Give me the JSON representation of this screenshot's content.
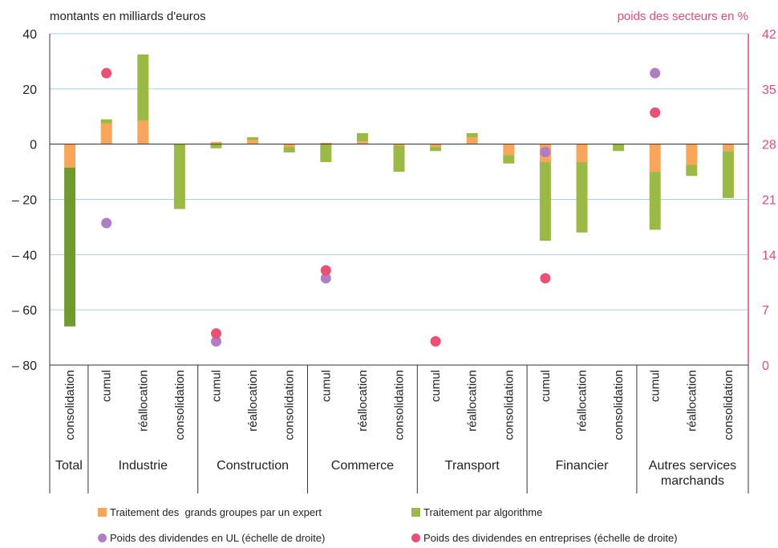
{
  "chart_data": {
    "type": "bar",
    "left_axis_title": "montants en milliards d'euros",
    "right_axis_title": "poids des secteurs en %",
    "y_left": {
      "min": -80,
      "max": 40,
      "ticks": [
        40,
        20,
        0,
        -20,
        -40,
        -60,
        -80
      ],
      "tick_labels": [
        "40",
        "20",
        "0",
        "– 20",
        "– 40",
        "– 60",
        "– 80"
      ]
    },
    "y_right": {
      "min": 0,
      "max": 42,
      "ticks": [
        42,
        35,
        28,
        21,
        14,
        7,
        0
      ],
      "tick_labels": [
        "42",
        "35",
        "28",
        "21",
        "14",
        "7",
        "0"
      ]
    },
    "grid": true,
    "legend_position": "bottom",
    "colors": {
      "expert": "#f9a65a",
      "algo": "#9bba44",
      "algo_total": "#6e9a2e",
      "ul": "#b27cc4",
      "entreprises": "#ec4f73",
      "right_axis": "#e8497a",
      "grid": "#a8d2e0"
    },
    "groups": [
      {
        "name": "Total",
        "categories": [
          "consolidation"
        ]
      },
      {
        "name": "Industrie",
        "categories": [
          "cumul",
          "réallocation",
          "consolidation"
        ]
      },
      {
        "name": "Construction",
        "categories": [
          "cumul",
          "réallocation",
          "consolidation"
        ]
      },
      {
        "name": "Commerce",
        "categories": [
          "cumul",
          "réallocation",
          "consolidation"
        ]
      },
      {
        "name": "Transport",
        "categories": [
          "cumul",
          "réallocation",
          "consolidation"
        ]
      },
      {
        "name": "Financier",
        "categories": [
          "cumul",
          "réallocation",
          "consolidation"
        ]
      },
      {
        "name": "Autres services marchands",
        "name_lines": [
          "Autres services",
          "marchands"
        ],
        "categories": [
          "cumul",
          "réallocation",
          "consolidation"
        ]
      }
    ],
    "series": [
      {
        "name": "Traitement des  grands groupes par un expert",
        "key": "expert",
        "values": [
          -8.5,
          7.5,
          8.5,
          0,
          0.8,
          1.5,
          -1,
          0.5,
          1,
          -0.5,
          -1,
          2.5,
          -4,
          -6.5,
          -6.5,
          0,
          -10,
          -7.5,
          -2.5
        ]
      },
      {
        "name": "Traitement par algorithme",
        "key": "algo",
        "values": [
          -57.5,
          1.5,
          24,
          -23.5,
          -1.5,
          1,
          -2,
          -6.5,
          3,
          -9.5,
          -1.5,
          1.5,
          -3,
          -28.5,
          -25.5,
          -2.5,
          -21,
          -4,
          -17
        ]
      }
    ],
    "dot_series": [
      {
        "name": "Poids des dividendes en UL (échelle de droite)",
        "key": "ul",
        "axis": "right",
        "points": [
          {
            "index": 1,
            "value": 18
          },
          {
            "index": 4,
            "value": 3
          },
          {
            "index": 7,
            "value": 11
          },
          {
            "index": 13,
            "value": 27
          },
          {
            "index": 16,
            "value": 37
          }
        ]
      },
      {
        "name": "Poids des dividendes en entreprises (échelle de droite)",
        "key": "entreprises",
        "axis": "right",
        "points": [
          {
            "index": 1,
            "value": 37
          },
          {
            "index": 4,
            "value": 4
          },
          {
            "index": 7,
            "value": 12
          },
          {
            "index": 10,
            "value": 3
          },
          {
            "index": 13,
            "value": 11
          },
          {
            "index": 16,
            "value": 32
          }
        ]
      }
    ]
  }
}
